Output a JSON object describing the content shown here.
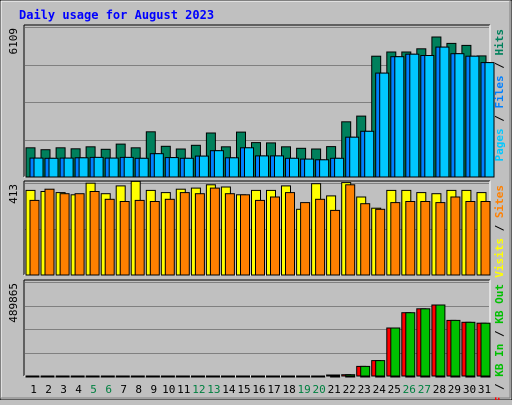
{
  "chart_data": [
    {
      "type": "bar",
      "title": "Daily usage for August 2023",
      "categories": [
        "1",
        "2",
        "3",
        "4",
        "5",
        "6",
        "7",
        "8",
        "9",
        "10",
        "11",
        "12",
        "13",
        "14",
        "15",
        "16",
        "17",
        "18",
        "19",
        "20",
        "21",
        "22",
        "23",
        "24",
        "25",
        "26",
        "27",
        "28",
        "29",
        "30",
        "31"
      ],
      "weekend_days": [
        "5",
        "6",
        "12",
        "13",
        "19",
        "20",
        "26",
        "27"
      ],
      "ymax_label": "6109",
      "ylim": [
        0,
        6109
      ],
      "legend": [
        "Pages",
        "Files",
        "Hits"
      ],
      "series": [
        {
          "name": "Hits",
          "color": "#00805c",
          "values": [
            1190,
            1110,
            1190,
            1150,
            1230,
            1130,
            1340,
            1190,
            1840,
            1250,
            1140,
            1290,
            1790,
            1230,
            1830,
            1400,
            1390,
            1230,
            1170,
            1140,
            1240,
            2250,
            2480,
            4920,
            5090,
            5090,
            5220,
            5700,
            5440,
            5360,
            4930
          ]
        },
        {
          "name": "Files",
          "color": "#0080ff",
          "values": [
            770,
            760,
            770,
            780,
            800,
            770,
            800,
            760,
            950,
            790,
            760,
            850,
            1070,
            780,
            1190,
            860,
            860,
            760,
            730,
            700,
            760,
            1620,
            1860,
            4230,
            4900,
            5000,
            4950,
            5290,
            5020,
            4920,
            4660
          ]
        },
        {
          "name": "Pages",
          "color": "#00c8ff",
          "values": [
            770,
            760,
            770,
            780,
            800,
            770,
            800,
            760,
            950,
            790,
            760,
            850,
            1070,
            780,
            1190,
            860,
            860,
            760,
            730,
            700,
            760,
            1620,
            1860,
            4230,
            4900,
            5000,
            4950,
            5290,
            5020,
            4920,
            4660
          ]
        }
      ]
    },
    {
      "type": "bar",
      "ymax_label": "413",
      "ylim": [
        0,
        413
      ],
      "legend": [
        "Visits",
        "Sites"
      ],
      "series": [
        {
          "name": "Visits",
          "color": "#ffff00",
          "values": [
            380,
            375,
            370,
            360,
            412,
            365,
            400,
            420,
            380,
            370,
            385,
            390,
            405,
            395,
            360,
            380,
            380,
            400,
            295,
            410,
            355,
            415,
            350,
            300,
            380,
            380,
            370,
            365,
            380,
            380,
            370
          ]
        },
        {
          "name": "Sites",
          "color": "#ff8000",
          "values": [
            335,
            385,
            365,
            365,
            375,
            340,
            330,
            335,
            330,
            340,
            370,
            365,
            390,
            365,
            360,
            335,
            350,
            370,
            325,
            340,
            290,
            405,
            320,
            295,
            325,
            330,
            330,
            325,
            350,
            330,
            330
          ]
        }
      ]
    },
    {
      "type": "bar",
      "ymax_label": "489865",
      "ylim": [
        0,
        489865
      ],
      "legend": [
        "KB F",
        "KB In",
        "KB Out"
      ],
      "series": [
        {
          "name": "KB F",
          "color": "#ff0000",
          "values": [
            0,
            0,
            0,
            0,
            0,
            0,
            0,
            0,
            0,
            0,
            0,
            0,
            0,
            0,
            0,
            0,
            0,
            0,
            0,
            0,
            5000,
            7000,
            50000,
            80000,
            250000,
            330000,
            350000,
            370000,
            290000,
            280000,
            275000
          ]
        },
        {
          "name": "KB In",
          "color": "#00c000",
          "values": [
            0,
            0,
            0,
            0,
            0,
            0,
            0,
            0,
            0,
            0,
            0,
            0,
            0,
            0,
            0,
            0,
            0,
            0,
            0,
            0,
            0,
            0,
            0,
            0,
            0,
            0,
            0,
            0,
            0,
            0,
            0
          ]
        },
        {
          "name": "KB Out",
          "color": "#00c000",
          "values": [
            0,
            0,
            0,
            0,
            0,
            0,
            0,
            0,
            0,
            0,
            0,
            0,
            0,
            0,
            0,
            0,
            0,
            0,
            0,
            0,
            5000,
            7000,
            50000,
            80000,
            250000,
            330000,
            350000,
            370000,
            290000,
            280000,
            275000
          ]
        }
      ]
    }
  ]
}
